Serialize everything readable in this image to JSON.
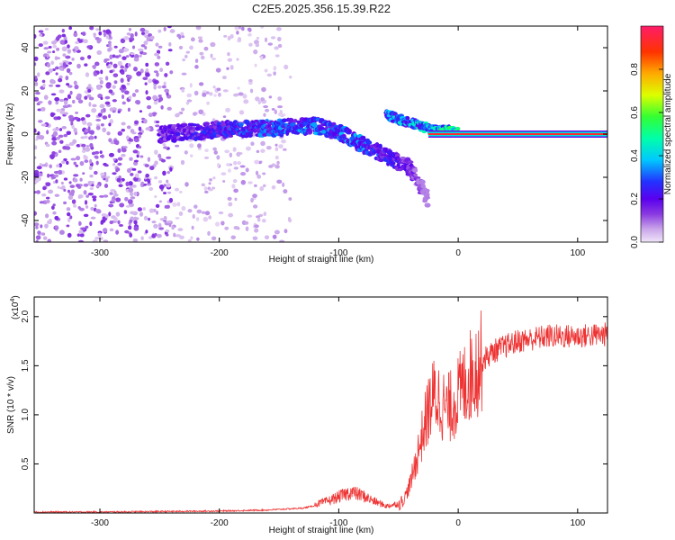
{
  "title": "C2E5.2025.356.15.39.R22",
  "colors": {
    "snr_line": "#ee3333",
    "axis": "#000000",
    "background": "#ffffff"
  },
  "chart_data": [
    {
      "type": "heatmap",
      "name": "spectrogram",
      "xlabel": "Height of straight line (km)",
      "ylabel": "Frequency (Hz)",
      "xlim": [
        -355,
        125
      ],
      "ylim": [
        -50,
        50
      ],
      "x_ticks": [
        -300,
        -200,
        -100,
        0,
        100
      ],
      "x_tick_labels": [
        "-300",
        "-200",
        "-100",
        "0",
        "100"
      ],
      "y_ticks": [
        -40,
        -20,
        0,
        20,
        40
      ],
      "y_tick_labels": [
        "-40",
        "-20",
        "0",
        "20",
        "40"
      ],
      "colorbar": {
        "label": "Normalized spectral amplitude",
        "range": [
          0,
          1
        ],
        "ticks": [
          0.0,
          0.2,
          0.4,
          0.6,
          0.8
        ],
        "tick_labels": [
          "0.0",
          "0.2",
          "0.4",
          "0.6",
          "0.8"
        ],
        "colormap": [
          "#f0e4f8",
          "#c9a6ea",
          "#8a3ae0",
          "#5a00ee",
          "#2233ff",
          "#00c8ff",
          "#00ffaa",
          "#33ff33",
          "#ddff00",
          "#ffaa00",
          "#ff3300",
          "#ff1c6a"
        ]
      },
      "features": {
        "noise_region_x": [
          -355,
          -140
        ],
        "main_track": [
          {
            "x": -250,
            "y": 0,
            "amp": 0.22
          },
          {
            "x": -200,
            "y": 2,
            "amp": 0.3
          },
          {
            "x": -150,
            "y": 3,
            "amp": 0.35
          },
          {
            "x": -120,
            "y": 4,
            "amp": 0.35
          },
          {
            "x": -100,
            "y": 1,
            "amp": 0.35
          },
          {
            "x": -80,
            "y": -5,
            "amp": 0.35
          },
          {
            "x": -60,
            "y": -10,
            "amp": 0.3
          },
          {
            "x": -40,
            "y": -16,
            "amp": 0.22
          },
          {
            "x": -25,
            "y": -30,
            "amp": 0.1
          }
        ],
        "secondary_track": [
          {
            "x": -60,
            "y": 9,
            "amp": 0.4
          },
          {
            "x": -40,
            "y": 5,
            "amp": 0.4
          },
          {
            "x": -20,
            "y": 2,
            "amp": 0.45
          },
          {
            "x": 0,
            "y": 1,
            "amp": 0.5
          }
        ],
        "carrier_line": {
          "x_start": -25,
          "x_end": 125,
          "y": 0,
          "amp": 0.95
        }
      }
    },
    {
      "type": "line",
      "name": "snr",
      "xlabel": "Height of straight line (km)",
      "ylabel": "SNR (10 * v/v)",
      "y_multiplier_label": "(x10",
      "y_multiplier_exp": "4",
      "y_unit": "x10^4",
      "xlim": [
        -355,
        125
      ],
      "ylim": [
        0,
        2.2
      ],
      "x_ticks": [
        -300,
        -200,
        -100,
        0,
        100
      ],
      "x_tick_labels": [
        "-300",
        "-200",
        "-100",
        "0",
        "100"
      ],
      "y_ticks": [
        0.5,
        1.0,
        1.5,
        2.0
      ],
      "y_tick_labels": [
        "0.5",
        "1.0",
        "1.5",
        "2.0"
      ],
      "series": [
        {
          "name": "SNR",
          "x": [
            -355,
            -300,
            -250,
            -200,
            -160,
            -130,
            -110,
            -100,
            -90,
            -80,
            -70,
            -60,
            -50,
            -45,
            -40,
            -35,
            -30,
            -25,
            -20,
            -15,
            -10,
            -5,
            0,
            10,
            20,
            30,
            50,
            75,
            100,
            125
          ],
          "y": [
            0.01,
            0.01,
            0.015,
            0.02,
            0.03,
            0.05,
            0.1,
            0.14,
            0.18,
            0.15,
            0.1,
            0.06,
            0.08,
            0.15,
            0.3,
            0.55,
            0.8,
            1.05,
            1.2,
            1.15,
            1.05,
            1.1,
            1.2,
            1.4,
            1.55,
            1.65,
            1.75,
            1.8,
            1.8,
            1.82
          ]
        }
      ]
    }
  ]
}
